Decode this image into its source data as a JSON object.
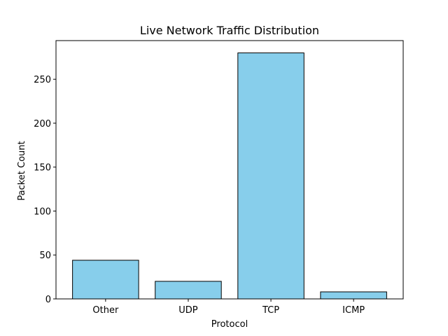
{
  "chart_data": {
    "type": "bar",
    "title": "Live Network Traffic Distribution",
    "xlabel": "Protocol",
    "ylabel": "Packet Count",
    "categories": [
      "Other",
      "UDP",
      "TCP",
      "ICMP"
    ],
    "values": [
      44,
      20,
      280,
      8
    ],
    "ylim": [
      0,
      294
    ],
    "yticks": [
      0,
      50,
      100,
      150,
      200,
      250
    ],
    "grid": false,
    "legend": "none",
    "colors": {
      "bar_fill": "#87ceeb",
      "bar_edge": "#000000",
      "axes": "#000000",
      "background": "#ffffff"
    }
  }
}
